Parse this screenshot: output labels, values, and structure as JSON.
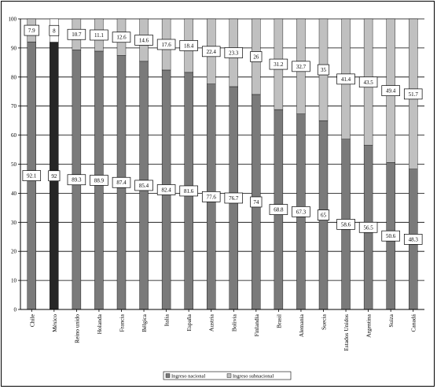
{
  "colors": {
    "nacional": "#7a7a7a",
    "subnacional": "#c0c0c0",
    "highlight": "#262626",
    "label_box": "#ffffff",
    "axis": "#000000",
    "grid": "#000000"
  },
  "chart_data": {
    "type": "bar",
    "stacked": true,
    "percent": true,
    "title": "",
    "xlabel": "",
    "ylabel": "",
    "ylim": [
      0,
      100
    ],
    "yticks": [
      0,
      10,
      20,
      30,
      40,
      50,
      60,
      70,
      80,
      90,
      100
    ],
    "grid": true,
    "legend_position": "bottom-center",
    "highlight_category": "México",
    "categories": [
      "Chile",
      "México",
      "Reino unido",
      "Holanda",
      "Francia",
      "Bélgica",
      "Italia",
      "España",
      "Austria",
      "Bolivia",
      "Finlandia",
      "Brasil",
      "Alemania",
      "Suecia",
      "Estados Unidos",
      "Argentina",
      "Suiza",
      "Canadá"
    ],
    "series": [
      {
        "name": "Ingreso nacional",
        "values": [
          92.1,
          92,
          89.3,
          88.9,
          87.4,
          85.4,
          82.4,
          81.6,
          77.6,
          76.7,
          74,
          68.8,
          67.3,
          65,
          58.6,
          56.5,
          50.6,
          48.3
        ],
        "labels": [
          "92.1",
          "92",
          "89.3",
          "88.9",
          "87.4",
          "85.4",
          "82.4",
          "81.6",
          "77.6",
          "76.7",
          "74",
          "68.8",
          "67.3",
          "65",
          "58.6",
          "56.5",
          "50.6",
          "48.3"
        ]
      },
      {
        "name": "Ingreso subnacional",
        "values": [
          7.9,
          8,
          10.7,
          11.1,
          12.6,
          14.6,
          17.6,
          18.4,
          22.4,
          23.3,
          26,
          31.2,
          32.7,
          35,
          41.4,
          43.5,
          49.4,
          51.7
        ],
        "labels": [
          "7.9",
          "8",
          "10.7",
          "11.1",
          "12.6",
          "14.6",
          "17.6",
          "18.4",
          "22.4",
          "23.3",
          "26",
          "31.2",
          "32.7",
          "35",
          "41.4",
          "43.5",
          "49.4",
          "51.7"
        ]
      }
    ]
  }
}
